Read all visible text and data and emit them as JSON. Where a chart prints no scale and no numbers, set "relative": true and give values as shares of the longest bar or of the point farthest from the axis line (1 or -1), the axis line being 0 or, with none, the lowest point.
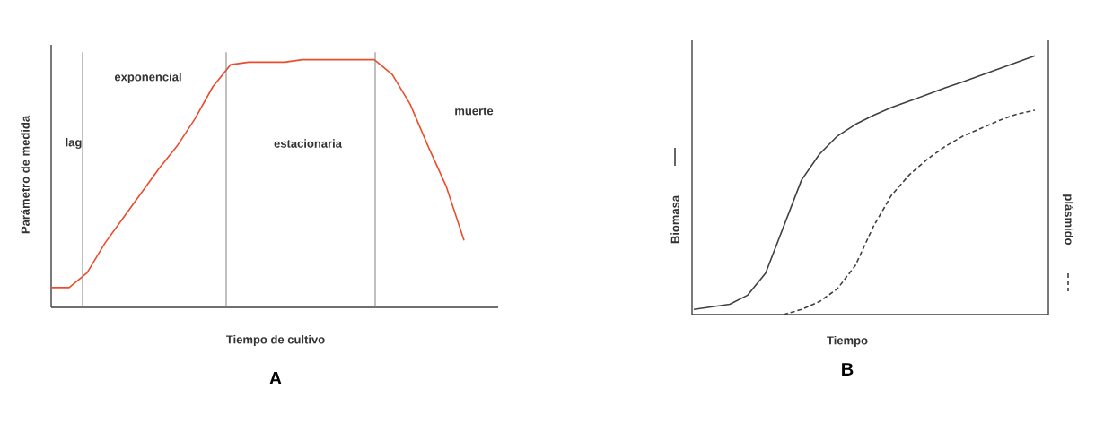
{
  "chart_data": [
    {
      "type": "line",
      "title": "A",
      "xlabel": "Tiempo de cultivo",
      "ylabel": "Parámetro de medida",
      "relative": true,
      "color": "#ee4b2b",
      "line_style": "solid",
      "categories": [
        null,
        null,
        null,
        null,
        null,
        null,
        null,
        null,
        null,
        null,
        null,
        null,
        null,
        null,
        null,
        null,
        null,
        null,
        null,
        null,
        null,
        null,
        null,
        null
      ],
      "values": [
        0.08,
        0.08,
        0.14,
        0.26,
        0.36,
        0.46,
        0.56,
        0.65,
        0.76,
        0.89,
        0.98,
        0.99,
        0.99,
        0.99,
        1.0,
        1.0,
        1.0,
        1.0,
        1.0,
        0.94,
        0.82,
        0.65,
        0.49,
        0.27
      ],
      "annotations": [
        "lag",
        "exponencial",
        "estacionaria",
        "muerte"
      ]
    },
    {
      "type": "line",
      "title": "B",
      "xlabel": "Tiempo",
      "ylabel": "Biomasa",
      "y2label": "plásmido",
      "relative": true,
      "categories": [
        null,
        null,
        null,
        null,
        null,
        null,
        null,
        null,
        null,
        null,
        null,
        null,
        null,
        null,
        null,
        null,
        null,
        null,
        null,
        null
      ],
      "series": [
        {
          "color": "#404040",
          "line_style": "solid",
          "values": [
            0.02,
            0.03,
            0.04,
            0.075,
            0.16,
            0.34,
            0.52,
            0.62,
            0.69,
            0.735,
            0.77,
            0.8,
            0.825,
            0.85,
            0.876,
            0.9,
            0.925,
            0.95,
            0.975,
            1.0
          ]
        },
        {
          "color": "#404040",
          "line_style": "dashed",
          "values": [
            null,
            null,
            null,
            null,
            null,
            0.0,
            0.02,
            0.05,
            0.1,
            0.19,
            0.34,
            0.46,
            0.54,
            0.6,
            0.65,
            0.69,
            0.72,
            0.75,
            0.775,
            0.79
          ]
        }
      ]
    }
  ]
}
